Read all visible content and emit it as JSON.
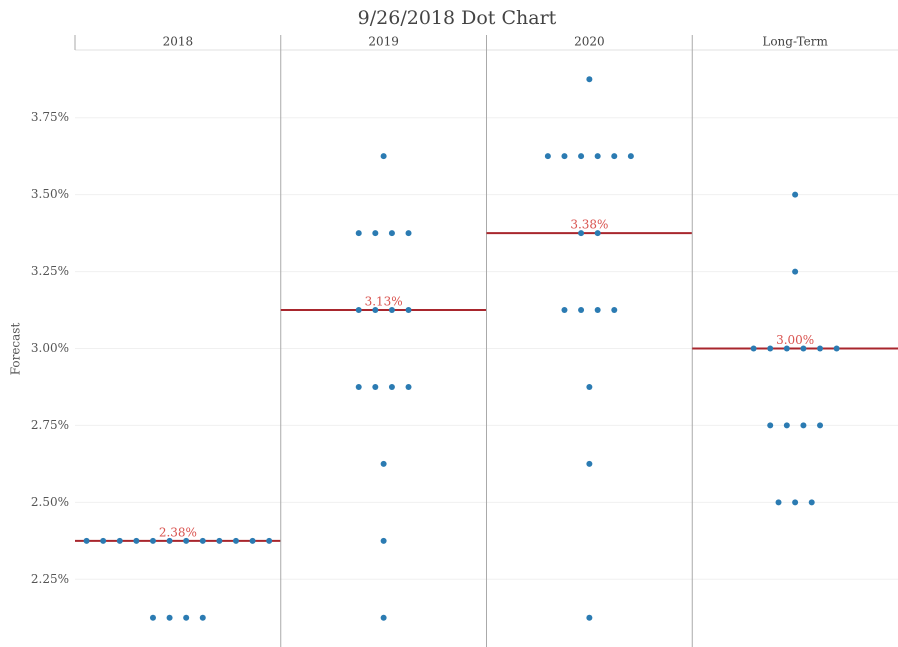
{
  "chart_data": {
    "type": "dot",
    "title": "9/26/2018 Dot Chart",
    "y_label": "Forecast",
    "ylim": [
      2.03,
      3.97
    ],
    "yticks": [
      {
        "value": 2.25,
        "label": "2.25%"
      },
      {
        "value": 2.5,
        "label": "2.50%"
      },
      {
        "value": 2.75,
        "label": "2.75%"
      },
      {
        "value": 3.0,
        "label": "3.00%"
      },
      {
        "value": 3.25,
        "label": "3.25%"
      },
      {
        "value": 3.5,
        "label": "3.50%"
      },
      {
        "value": 3.75,
        "label": "3.75%"
      }
    ],
    "grid": true,
    "dot_color": "#2b7bb2",
    "median_color": "#a8262d",
    "panels": [
      {
        "name": "2018",
        "values": [
          2.375,
          2.375,
          2.375,
          2.375,
          2.375,
          2.375,
          2.375,
          2.375,
          2.375,
          2.375,
          2.375,
          2.375,
          2.125,
          2.125,
          2.125,
          2.125
        ],
        "median": 2.375,
        "median_label": "2.38%"
      },
      {
        "name": "2019",
        "values": [
          3.625,
          3.375,
          3.375,
          3.375,
          3.375,
          3.125,
          3.125,
          3.125,
          3.125,
          2.875,
          2.875,
          2.875,
          2.875,
          2.625,
          2.375,
          2.125
        ],
        "median": 3.125,
        "median_label": "3.13%"
      },
      {
        "name": "2020",
        "values": [
          3.875,
          3.625,
          3.625,
          3.625,
          3.625,
          3.625,
          3.625,
          3.375,
          3.375,
          3.125,
          3.125,
          3.125,
          3.125,
          2.875,
          2.625,
          2.125
        ],
        "median": 3.375,
        "median_label": "3.38%"
      },
      {
        "name": "Long-Term",
        "values": [
          3.5,
          3.25,
          3.0,
          3.0,
          3.0,
          3.0,
          3.0,
          3.0,
          2.75,
          2.75,
          2.75,
          2.75,
          2.5,
          2.5,
          2.5
        ],
        "median": 3.0,
        "median_label": "3.00%"
      }
    ]
  }
}
